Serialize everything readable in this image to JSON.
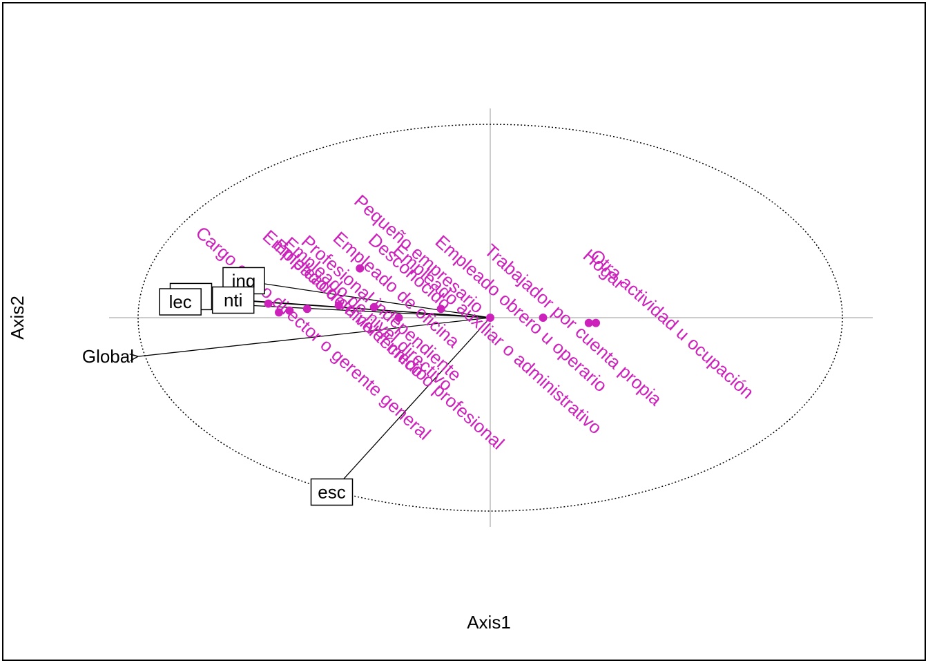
{
  "chart_data": {
    "type": "scatter",
    "xlabel": "Axis1",
    "ylabel": "Axis2",
    "xlim": [
      -1.1,
      1.1
    ],
    "ylim": [
      -1.1,
      1.1
    ],
    "colors": {
      "categories": "#cc22bb",
      "axes": "#bbbbbb",
      "text": "#000000"
    },
    "categories": [
      {
        "label": "Empleado de nivel técnico o profesional",
        "x": -0.63,
        "y": 0.08
      },
      {
        "label": "Empleado de nivel directivo",
        "x": -0.57,
        "y": 0.04
      },
      {
        "label": "Empleado de nivel medio",
        "x": -0.6,
        "y": 0.03
      },
      {
        "label": "Profesional independiente",
        "x": -0.52,
        "y": 0.05
      },
      {
        "label": "Cargo como director o gerente general",
        "x": -0.82,
        "y": 0.1
      },
      {
        "label": "Empleado de oficina",
        "x": -0.43,
        "y": 0.07
      },
      {
        "label": "Desconocido",
        "x": -0.33,
        "y": 0.06
      },
      {
        "label": "Pequeño empresario",
        "x": -0.37,
        "y": 0.28
      },
      {
        "label": "Empleado auxiliar o administrativo",
        "x": -0.26,
        "y": 0.0
      },
      {
        "label": "Empleado obrero u operario",
        "x": -0.14,
        "y": 0.05
      },
      {
        "label": "Trabajador por cuenta propia",
        "x": 0.0,
        "y": 0.0
      },
      {
        "label": "Hogar",
        "x": 0.28,
        "y": -0.03
      },
      {
        "label": "Otra actividad u ocupación",
        "x": 0.3,
        "y": -0.03
      },
      {
        "label": "",
        "x": 0.15,
        "y": 0.0
      }
    ],
    "scores": [
      {
        "label": "ing",
        "x": -0.7,
        "y": 0.21
      },
      {
        "label": "nti",
        "x": -0.73,
        "y": 0.1
      },
      {
        "label": "ciu",
        "x": -0.85,
        "y": 0.12
      },
      {
        "label": "lec",
        "x": -0.88,
        "y": 0.09
      },
      {
        "label": "esc",
        "x": -0.45,
        "y": -0.99
      },
      {
        "label": "Global",
        "x": -1.0,
        "y": -0.22
      }
    ]
  }
}
